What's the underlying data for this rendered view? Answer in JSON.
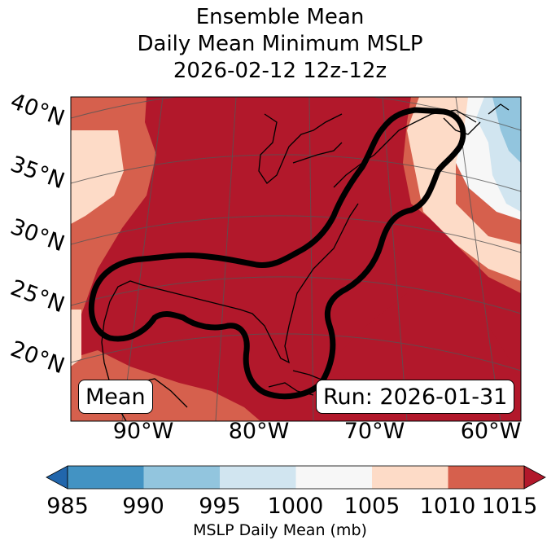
{
  "title": {
    "line1": "Ensemble Mean",
    "line2": "Daily Mean Minimum MSLP",
    "line3": "2026-02-12 12z-12z"
  },
  "map": {
    "lat_labels": [
      "40°N",
      "35°N",
      "30°N",
      "25°N",
      "20°N"
    ],
    "lon_labels": [
      "90°W",
      "80°W",
      "70°W",
      "60°W"
    ],
    "mean_label": "Mean",
    "run_label": "Run: 2026-01-31"
  },
  "colorbar": {
    "label": "MSLP Daily Mean (mb)",
    "ticks": [
      "985",
      "990",
      "995",
      "1000",
      "1005",
      "1010",
      "1015"
    ],
    "colors": {
      "under": "#2166ac",
      "c985_990": "#4393c3",
      "c990_995": "#92c5de",
      "c995_1000": "#d1e5f0",
      "c1000_1005": "#f7f7f7",
      "c1005_1010": "#fddbc7",
      "c1010_1015": "#d6604d",
      "over": "#b2182b"
    }
  }
}
